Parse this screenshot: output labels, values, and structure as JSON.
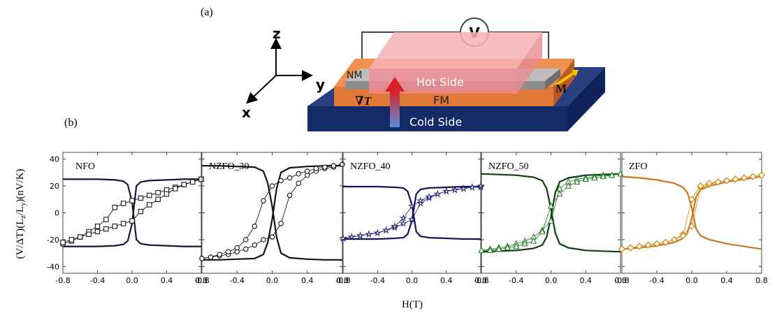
{
  "panel_labels": {
    "a": "(a)",
    "b": "(b)"
  },
  "schematic": {
    "axis_z": "z",
    "axis_y": "y",
    "axis_x": "x",
    "voltmeter": "V",
    "nm_label": "NM",
    "hot_side": "Hot Side",
    "fm_label": "FM",
    "grad_label": "∇T",
    "cold_side": "Cold Side",
    "m_label": "M",
    "colors": {
      "substrate_top": "#2a3f7f",
      "substrate_front": "#142a66",
      "fm": "#e07838",
      "nm": "#9b9b9b",
      "hot": "#f5a3a8"
    }
  },
  "common": {
    "ylabel": "(V/ΔT)(Lz/Ly)(nV/K)",
    "ylabel_parts": [
      "(V/ΔT)(L",
      "z",
      "/L",
      "y",
      ")(nV/K)"
    ],
    "xlabel": "H(T)",
    "xlim": [
      -0.8,
      0.8
    ],
    "ylim": [
      -45,
      45
    ],
    "yticks": [
      -40,
      -20,
      0,
      20,
      40
    ],
    "xticks": [
      -0.8,
      -0.4,
      0.0,
      0.4,
      0.8
    ],
    "xtick_labels": [
      "-0.8",
      "-0.4",
      "0.0",
      "0.4",
      "0.8"
    ]
  },
  "chart_data": [
    {
      "type": "line",
      "title": "NFO",
      "color": "#000000",
      "marker": "square",
      "fit_color": "#221133",
      "series": [
        {
          "name": "",
          "x": [
            -0.8,
            -0.7,
            -0.6,
            -0.5,
            -0.4,
            -0.3,
            -0.2,
            -0.1,
            0.0,
            0.1,
            0.2,
            0.3,
            0.4,
            0.5,
            0.6,
            0.7,
            0.8
          ],
          "y": [
            -23,
            -21,
            -18,
            -14,
            -10,
            -5,
            4,
            7,
            9,
            11,
            13,
            15,
            17,
            19,
            21,
            23,
            25
          ]
        },
        {
          "name": "",
          "x": [
            0.8,
            0.7,
            0.6,
            0.5,
            0.4,
            0.3,
            0.2,
            0.1,
            0.0,
            -0.1,
            -0.2,
            -0.3,
            -0.4,
            -0.5,
            -0.6,
            -0.7,
            -0.8
          ],
          "y": [
            25,
            23,
            21,
            18,
            14,
            10,
            6,
            1,
            -6,
            -8,
            -10,
            -12,
            -14,
            -16,
            -18,
            -20,
            -22
          ]
        }
      ],
      "fit": {
        "x": [
          -0.8,
          -0.6,
          -0.4,
          -0.2,
          -0.1,
          -0.05,
          0.0,
          0.05,
          0.1,
          0.2,
          0.4,
          0.6,
          0.8
        ],
        "y_up": [
          -25,
          -25,
          -25,
          -24.5,
          -23.5,
          -21,
          -8,
          20,
          23,
          24,
          24.5,
          25,
          25
        ],
        "y_down": [
          25,
          25,
          25,
          24.5,
          23.5,
          21,
          8,
          -20,
          -23,
          -24,
          -24.5,
          -25,
          -25
        ]
      }
    },
    {
      "type": "line",
      "title": "NZFO_30",
      "color": "#000000",
      "marker": "circle",
      "fit_color": "#1a0f1a",
      "series": [
        {
          "name": "",
          "x": [
            -0.8,
            -0.7,
            -0.6,
            -0.5,
            -0.4,
            -0.3,
            -0.2,
            -0.1,
            0.0,
            0.1,
            0.2,
            0.3,
            0.4,
            0.5,
            0.6,
            0.7,
            0.8
          ],
          "y": [
            -34,
            -33,
            -32,
            -31,
            -29,
            -27,
            -24,
            -20,
            -18,
            -8,
            13,
            22,
            28,
            31,
            33,
            34,
            36
          ]
        },
        {
          "name": "",
          "x": [
            0.8,
            0.7,
            0.6,
            0.5,
            0.4,
            0.3,
            0.2,
            0.1,
            0.0,
            -0.1,
            -0.2,
            -0.3,
            -0.4,
            -0.5,
            -0.6,
            -0.7,
            -0.8
          ],
          "y": [
            36,
            35,
            34,
            33,
            31,
            29,
            26,
            24,
            20,
            9,
            -10,
            -20,
            -26,
            -29,
            -31,
            -33,
            -34
          ]
        }
      ],
      "fit": {
        "x": [
          -0.8,
          -0.6,
          -0.4,
          -0.2,
          -0.1,
          -0.05,
          0.0,
          0.05,
          0.1,
          0.2,
          0.4,
          0.6,
          0.8
        ],
        "y_up": [
          -35,
          -35,
          -34.5,
          -34,
          -31,
          -22,
          -5,
          18,
          30,
          33.5,
          34.5,
          35,
          35
        ],
        "y_down": [
          35,
          35,
          34.5,
          34,
          31,
          22,
          5,
          -18,
          -30,
          -33.5,
          -34.5,
          -35,
          -35
        ]
      }
    },
    {
      "type": "line",
      "title": "NZFO_40",
      "color": "#1a1a6e",
      "marker": "star",
      "fit_color": "#14145a",
      "series": [
        {
          "name": "",
          "x": [
            -0.8,
            -0.7,
            -0.6,
            -0.5,
            -0.4,
            -0.3,
            -0.2,
            -0.1,
            0.0,
            0.1,
            0.2,
            0.3,
            0.4,
            0.5,
            0.6,
            0.7,
            0.8
          ],
          "y": [
            -19,
            -18,
            -17,
            -16,
            -15,
            -13,
            -11,
            -8,
            -5,
            7,
            11,
            14,
            16,
            17,
            18,
            19,
            19
          ]
        },
        {
          "name": "",
          "x": [
            0.8,
            0.7,
            0.6,
            0.5,
            0.4,
            0.3,
            0.2,
            0.1,
            0.0,
            -0.1,
            -0.2,
            -0.3,
            -0.4,
            -0.5,
            -0.6,
            -0.7,
            -0.8
          ],
          "y": [
            20,
            19,
            18,
            17,
            16,
            14,
            12,
            9,
            5,
            -4,
            -10,
            -13,
            -15,
            -16,
            -17,
            -18,
            -19
          ]
        }
      ],
      "fit": {
        "x": [
          -0.8,
          -0.6,
          -0.4,
          -0.2,
          -0.1,
          -0.05,
          0.0,
          0.05,
          0.1,
          0.2,
          0.4,
          0.6,
          0.8
        ],
        "y_up": [
          -19.5,
          -19.5,
          -19.5,
          -19,
          -18.5,
          -16,
          -6,
          14,
          17.5,
          18.5,
          19,
          19.5,
          19.5
        ],
        "y_down": [
          19.5,
          19.5,
          19.5,
          19,
          18.5,
          16,
          6,
          -14,
          -17.5,
          -18.5,
          -19,
          -19.5,
          -19.5
        ]
      }
    },
    {
      "type": "line",
      "title": "NZFO_50",
      "color": "#1e7a1e",
      "marker": "triangle",
      "fit_color": "#0f3d0f",
      "series": [
        {
          "name": "",
          "x": [
            -0.8,
            -0.7,
            -0.6,
            -0.5,
            -0.4,
            -0.3,
            -0.2,
            -0.1,
            0.0,
            0.1,
            0.2,
            0.3,
            0.4,
            0.5,
            0.6,
            0.7,
            0.8
          ],
          "y": [
            -28,
            -27,
            -26,
            -25,
            -23,
            -21,
            -18,
            -13,
            -6,
            18,
            23,
            25,
            26,
            27,
            28,
            28,
            29
          ]
        },
        {
          "name": "",
          "x": [
            0.8,
            0.7,
            0.6,
            0.5,
            0.4,
            0.3,
            0.2,
            0.1,
            0.0,
            -0.1,
            -0.2,
            -0.3,
            -0.4,
            -0.5,
            -0.6,
            -0.7,
            -0.8
          ],
          "y": [
            29,
            28,
            27,
            26,
            25,
            23,
            20,
            14,
            5,
            -14,
            -21,
            -23,
            -25,
            -26,
            -27,
            -28,
            -28
          ]
        }
      ],
      "fit": {
        "x": [
          -0.8,
          -0.6,
          -0.4,
          -0.2,
          -0.1,
          -0.05,
          0.0,
          0.05,
          0.1,
          0.2,
          0.4,
          0.6,
          0.8
        ],
        "y_up": [
          -29,
          -28.5,
          -28,
          -26.5,
          -24,
          -18,
          -3,
          15,
          23,
          26,
          28,
          28.5,
          29
        ],
        "y_down": [
          29,
          28.5,
          28,
          26.5,
          24,
          18,
          3,
          -15,
          -23,
          -26,
          -28,
          -28.5,
          -29
        ]
      }
    },
    {
      "type": "line",
      "title": "ZFO",
      "color": "#d4870c",
      "marker": "diamond",
      "fit_color": "#c8781a",
      "series": [
        {
          "name": "",
          "x": [
            -0.8,
            -0.7,
            -0.6,
            -0.5,
            -0.4,
            -0.3,
            -0.2,
            -0.1,
            0.0,
            0.1,
            0.2,
            0.3,
            0.4,
            0.5,
            0.6,
            0.7,
            0.8
          ],
          "y": [
            -27,
            -26,
            -25,
            -24,
            -23,
            -22,
            -20,
            -16,
            -10,
            19,
            21,
            23,
            24,
            25,
            26,
            27,
            28
          ]
        },
        {
          "name": "",
          "x": [
            0.8,
            0.7,
            0.6,
            0.5,
            0.4,
            0.3,
            0.2,
            0.1,
            0.0,
            -0.1,
            -0.2,
            -0.3,
            -0.4,
            -0.5,
            -0.6,
            -0.7,
            -0.8
          ],
          "y": [
            28,
            27,
            26,
            25,
            24,
            23,
            22,
            20,
            10,
            -17,
            -20,
            -22,
            -23,
            -24,
            -25,
            -26,
            -27
          ]
        }
      ],
      "fit": {
        "x": [
          -0.8,
          -0.6,
          -0.4,
          -0.2,
          -0.1,
          -0.05,
          0.0,
          0.05,
          0.1,
          0.2,
          0.4,
          0.6,
          0.8
        ],
        "y_up": [
          -27,
          -26,
          -24.5,
          -22,
          -19,
          -15,
          -4,
          12,
          17,
          20,
          23,
          25,
          27
        ],
        "y_down": [
          27,
          26,
          24.5,
          22,
          19,
          15,
          4,
          -12,
          -17,
          -20,
          -23,
          -25,
          -27
        ]
      }
    }
  ]
}
